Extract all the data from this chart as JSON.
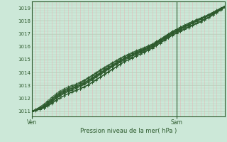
{
  "xlabel": "Pression niveau de la mer( hPa )",
  "bg_color": "#cce8d8",
  "grid_color_h": "#b8ccb8",
  "grid_color_v": "#e8b8b8",
  "line_color": "#2d5a2d",
  "axis_color": "#2d5a2d",
  "text_color": "#2d5a2d",
  "border_color": "#2d5a2d",
  "ylim": [
    1010.6,
    1019.5
  ],
  "xlim": [
    0,
    48
  ],
  "yticks": [
    1011,
    1012,
    1013,
    1014,
    1015,
    1016,
    1017,
    1018,
    1019
  ],
  "xtick_positions": [
    0,
    36
  ],
  "xtick_labels": [
    "Ven",
    "Sam"
  ],
  "vline_x": 36,
  "x_data": [
    0,
    1,
    2,
    3,
    4,
    5,
    6,
    7,
    8,
    9,
    10,
    11,
    12,
    13,
    14,
    15,
    16,
    17,
    18,
    19,
    20,
    21,
    22,
    23,
    24,
    25,
    26,
    27,
    28,
    29,
    30,
    31,
    32,
    33,
    34,
    35,
    36,
    37,
    38,
    39,
    40,
    41,
    42,
    43,
    44,
    45,
    46,
    47,
    48
  ],
  "series": [
    [
      1011.0,
      1011.08,
      1011.16,
      1011.28,
      1011.44,
      1011.64,
      1011.84,
      1012.04,
      1012.2,
      1012.36,
      1012.5,
      1012.62,
      1012.74,
      1012.88,
      1013.03,
      1013.22,
      1013.42,
      1013.62,
      1013.82,
      1014.02,
      1014.22,
      1014.42,
      1014.62,
      1014.82,
      1014.97,
      1015.12,
      1015.27,
      1015.42,
      1015.57,
      1015.72,
      1015.88,
      1016.08,
      1016.28,
      1016.48,
      1016.68,
      1016.88,
      1017.03,
      1017.18,
      1017.33,
      1017.48,
      1017.63,
      1017.78,
      1017.93,
      1018.08,
      1018.23,
      1018.43,
      1018.63,
      1018.83,
      1019.03
    ],
    [
      1011.0,
      1011.07,
      1011.14,
      1011.24,
      1011.4,
      1011.6,
      1011.82,
      1012.02,
      1012.18,
      1012.34,
      1012.48,
      1012.6,
      1012.73,
      1012.87,
      1013.02,
      1013.22,
      1013.42,
      1013.62,
      1013.82,
      1014.02,
      1014.22,
      1014.42,
      1014.62,
      1014.82,
      1014.97,
      1015.12,
      1015.27,
      1015.42,
      1015.57,
      1015.72,
      1015.88,
      1016.08,
      1016.28,
      1016.48,
      1016.68,
      1016.88,
      1017.03,
      1017.18,
      1017.33,
      1017.48,
      1017.63,
      1017.78,
      1017.93,
      1018.08,
      1018.23,
      1018.43,
      1018.63,
      1018.83,
      1019.03
    ],
    [
      1011.0,
      1011.07,
      1011.14,
      1011.25,
      1011.42,
      1011.62,
      1011.84,
      1012.04,
      1012.2,
      1012.36,
      1012.5,
      1012.62,
      1012.75,
      1012.9,
      1013.06,
      1013.26,
      1013.46,
      1013.66,
      1013.86,
      1014.06,
      1014.26,
      1014.46,
      1014.66,
      1014.86,
      1015.0,
      1015.15,
      1015.3,
      1015.45,
      1015.6,
      1015.75,
      1015.92,
      1016.12,
      1016.32,
      1016.52,
      1016.72,
      1016.92,
      1017.08,
      1017.23,
      1017.38,
      1017.53,
      1017.68,
      1017.83,
      1017.98,
      1018.13,
      1018.28,
      1018.48,
      1018.68,
      1018.88,
      1019.08
    ],
    [
      1011.0,
      1011.08,
      1011.16,
      1011.3,
      1011.5,
      1011.74,
      1011.98,
      1012.18,
      1012.35,
      1012.5,
      1012.64,
      1012.76,
      1012.9,
      1013.06,
      1013.22,
      1013.42,
      1013.62,
      1013.82,
      1014.02,
      1014.22,
      1014.42,
      1014.6,
      1014.78,
      1014.96,
      1015.1,
      1015.24,
      1015.38,
      1015.52,
      1015.66,
      1015.82,
      1015.98,
      1016.18,
      1016.38,
      1016.58,
      1016.78,
      1016.98,
      1017.14,
      1017.28,
      1017.42,
      1017.56,
      1017.7,
      1017.84,
      1017.98,
      1018.14,
      1018.3,
      1018.5,
      1018.7,
      1018.9,
      1019.1
    ],
    [
      1011.0,
      1011.1,
      1011.2,
      1011.38,
      1011.6,
      1011.88,
      1012.12,
      1012.34,
      1012.5,
      1012.64,
      1012.76,
      1012.88,
      1013.02,
      1013.18,
      1013.36,
      1013.55,
      1013.75,
      1013.94,
      1014.14,
      1014.34,
      1014.52,
      1014.7,
      1014.88,
      1015.06,
      1015.2,
      1015.34,
      1015.48,
      1015.6,
      1015.74,
      1015.88,
      1016.04,
      1016.24,
      1016.44,
      1016.64,
      1016.84,
      1017.04,
      1017.2,
      1017.35,
      1017.5,
      1017.65,
      1017.8,
      1017.95,
      1018.1,
      1018.25,
      1018.4,
      1018.58,
      1018.76,
      1018.94,
      1019.12
    ],
    [
      1011.0,
      1011.1,
      1011.2,
      1011.36,
      1011.56,
      1011.8,
      1012.04,
      1012.26,
      1012.44,
      1012.6,
      1012.74,
      1012.86,
      1013.0,
      1013.15,
      1013.32,
      1013.52,
      1013.72,
      1013.92,
      1014.12,
      1014.32,
      1014.52,
      1014.72,
      1014.9,
      1015.08,
      1015.22,
      1015.36,
      1015.5,
      1015.64,
      1015.78,
      1015.94,
      1016.1,
      1016.3,
      1016.5,
      1016.7,
      1016.9,
      1017.1,
      1017.25,
      1017.4,
      1017.55,
      1017.7,
      1017.85,
      1018.0,
      1018.14,
      1018.28,
      1018.42,
      1018.6,
      1018.78,
      1018.96,
      1019.14
    ],
    [
      1011.0,
      1011.1,
      1011.22,
      1011.4,
      1011.64,
      1011.92,
      1012.16,
      1012.38,
      1012.56,
      1012.7,
      1012.82,
      1012.94,
      1013.08,
      1013.24,
      1013.4,
      1013.6,
      1013.8,
      1014.0,
      1014.2,
      1014.4,
      1014.58,
      1014.76,
      1014.94,
      1015.12,
      1015.26,
      1015.4,
      1015.54,
      1015.68,
      1015.8,
      1015.96,
      1016.12,
      1016.3,
      1016.5,
      1016.7,
      1016.9,
      1017.1,
      1017.25,
      1017.4,
      1017.55,
      1017.7,
      1017.85,
      1018.0,
      1018.14,
      1018.28,
      1018.42,
      1018.6,
      1018.78,
      1018.96,
      1019.14
    ],
    [
      1011.0,
      1011.14,
      1011.3,
      1011.5,
      1011.74,
      1012.0,
      1012.26,
      1012.48,
      1012.66,
      1012.8,
      1012.92,
      1013.04,
      1013.2,
      1013.38,
      1013.56,
      1013.76,
      1013.96,
      1014.16,
      1014.34,
      1014.52,
      1014.7,
      1014.88,
      1015.04,
      1015.2,
      1015.34,
      1015.48,
      1015.6,
      1015.72,
      1015.84,
      1015.98,
      1016.14,
      1016.32,
      1016.52,
      1016.72,
      1016.92,
      1017.12,
      1017.28,
      1017.44,
      1017.6,
      1017.74,
      1017.88,
      1018.02,
      1018.16,
      1018.3,
      1018.44,
      1018.6,
      1018.76,
      1018.92,
      1019.08
    ],
    [
      1011.0,
      1011.06,
      1011.14,
      1011.28,
      1011.48,
      1011.72,
      1011.96,
      1012.18,
      1012.36,
      1012.52,
      1012.66,
      1012.78,
      1012.92,
      1013.08,
      1013.26,
      1013.46,
      1013.66,
      1013.86,
      1014.06,
      1014.26,
      1014.46,
      1014.64,
      1014.82,
      1015.0,
      1015.15,
      1015.3,
      1015.44,
      1015.58,
      1015.72,
      1015.86,
      1016.02,
      1016.22,
      1016.42,
      1016.62,
      1016.82,
      1017.02,
      1017.18,
      1017.34,
      1017.5,
      1017.65,
      1017.8,
      1017.95,
      1018.1,
      1018.24,
      1018.38,
      1018.55,
      1018.72,
      1018.9,
      1019.07
    ],
    [
      1011.0,
      1011.12,
      1011.26,
      1011.44,
      1011.68,
      1011.96,
      1012.2,
      1012.42,
      1012.6,
      1012.76,
      1012.9,
      1013.02,
      1013.16,
      1013.32,
      1013.5,
      1013.7,
      1013.9,
      1014.1,
      1014.3,
      1014.5,
      1014.68,
      1014.86,
      1015.04,
      1015.22,
      1015.36,
      1015.5,
      1015.64,
      1015.78,
      1015.9,
      1016.04,
      1016.2,
      1016.38,
      1016.58,
      1016.78,
      1016.98,
      1017.18,
      1017.34,
      1017.5,
      1017.66,
      1017.8,
      1017.94,
      1018.08,
      1018.2,
      1018.34,
      1018.48,
      1018.64,
      1018.8,
      1018.96,
      1019.12
    ],
    [
      1011.0,
      1011.08,
      1011.18,
      1011.34,
      1011.56,
      1011.82,
      1012.06,
      1012.28,
      1012.46,
      1012.62,
      1012.76,
      1012.88,
      1013.02,
      1013.18,
      1013.36,
      1013.56,
      1013.76,
      1013.96,
      1014.16,
      1014.36,
      1014.56,
      1014.74,
      1014.92,
      1015.1,
      1015.24,
      1015.38,
      1015.52,
      1015.66,
      1015.8,
      1015.94,
      1016.1,
      1016.3,
      1016.5,
      1016.7,
      1016.9,
      1017.1,
      1017.25,
      1017.4,
      1017.56,
      1017.7,
      1017.84,
      1017.98,
      1018.12,
      1018.26,
      1018.4,
      1018.57,
      1018.74,
      1018.91,
      1019.08
    ],
    [
      1011.0,
      1011.16,
      1011.34,
      1011.56,
      1011.82,
      1012.1,
      1012.34,
      1012.56,
      1012.74,
      1012.88,
      1013.0,
      1013.12,
      1013.26,
      1013.42,
      1013.6,
      1013.8,
      1014.0,
      1014.2,
      1014.4,
      1014.58,
      1014.76,
      1014.94,
      1015.12,
      1015.28,
      1015.42,
      1015.56,
      1015.7,
      1015.82,
      1015.94,
      1016.08,
      1016.22,
      1016.4,
      1016.6,
      1016.8,
      1017.0,
      1017.2,
      1017.36,
      1017.52,
      1017.68,
      1017.82,
      1017.96,
      1018.1,
      1018.22,
      1018.36,
      1018.5,
      1018.66,
      1018.82,
      1018.98,
      1019.14
    ]
  ]
}
